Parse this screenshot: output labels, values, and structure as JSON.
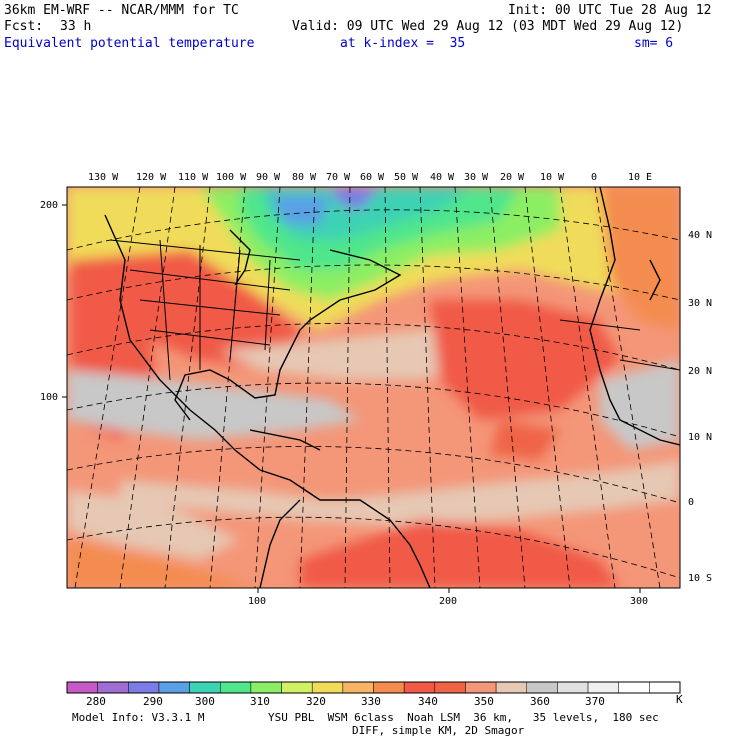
{
  "header": {
    "model": "36km EM-WRF -- NCAR/MMM for TC",
    "init": "Init: 00 UTC Tue 28 Aug 12",
    "fcst_label": "Fcst:",
    "fcst_value": "33 h",
    "valid": "Valid: 09 UTC Wed 29 Aug 12 (03 MDT Wed 29 Aug 12)",
    "field": "Equivalent potential temperature",
    "level": "at k-index =  35",
    "smoothing": "sm= 6"
  },
  "axes": {
    "lon_labels": [
      "130 W",
      "120 W",
      "110 W",
      "100 W",
      "90 W",
      "80 W",
      "70 W",
      "60 W",
      "50 W",
      "40 W",
      "30 W",
      "20 W",
      "10 W",
      "0",
      "10 E"
    ],
    "lat_labels": [
      "40 N",
      "30 N",
      "20 N",
      "10 N",
      "0",
      "10 S"
    ],
    "grid_left_labels": [
      "200",
      "100"
    ],
    "grid_bottom_labels": [
      "100",
      "200",
      "300"
    ]
  },
  "colorbar": {
    "labels": [
      "280",
      "290",
      "300",
      "310",
      "320",
      "330",
      "340",
      "350",
      "360",
      "370"
    ],
    "unit": "K",
    "colors": [
      "#c85ac8",
      "#a06ed2",
      "#7c7ce6",
      "#5aa0e6",
      "#3cd2b4",
      "#50e68c",
      "#8cee64",
      "#d2f064",
      "#f0dc5a",
      "#f6b464",
      "#f48c50",
      "#f05a46",
      "#f06446",
      "#f49678",
      "#e6c8b4",
      "#c8c8c8",
      "#e1e1e1",
      "#f0f0f0",
      "#ffffff",
      "#ffffff"
    ]
  },
  "footer": {
    "line1_left": "Model Info: V3.3.1 M",
    "line1_right": "YSU PBL  WSM 6class  Noah LSM  36 km,   35 levels,  180 sec",
    "line2": "DIFF, simple KM, 2D Smagor"
  }
}
